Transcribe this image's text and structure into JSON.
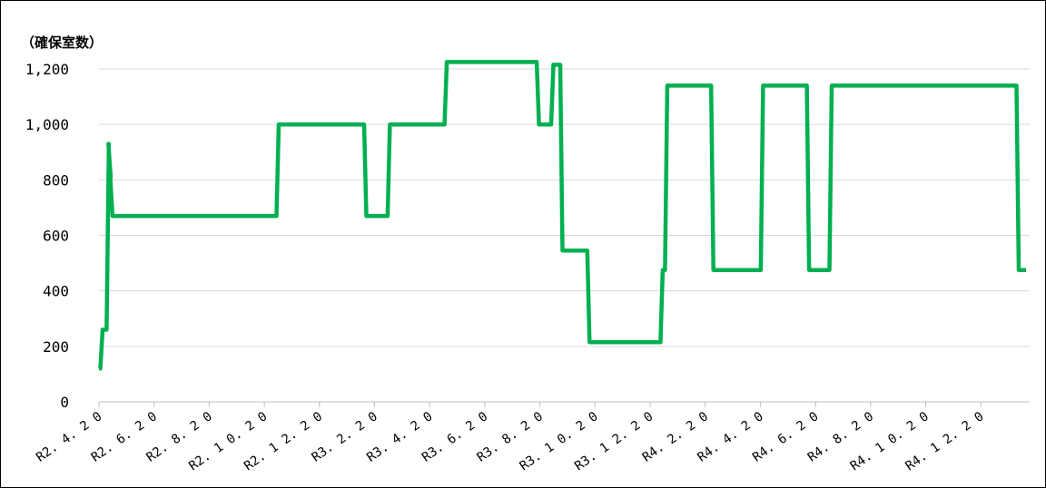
{
  "colors": {
    "series": "#00B050",
    "grid": "#D9D9D9",
    "axis": "#BFBFBF",
    "text": "#000000"
  },
  "chart_data": {
    "type": "line",
    "title": "",
    "xlabel": "",
    "ylabel": "（確保室数）",
    "ylim": [
      0,
      1200
    ],
    "y_ticks": [
      "0",
      "200",
      "400",
      "600",
      "800",
      "1,000",
      "1,200"
    ],
    "x_tick_labels": [
      "R2.4.20",
      "R2.6.20",
      "R2.8.20",
      "R2.10.20",
      "R2.12.20",
      "R3.2.20",
      "R3.4.20",
      "R3.6.20",
      "R3.8.20",
      "R3.10.20",
      "R3.12.20",
      "R4.2.20",
      "R4.4.20",
      "R4.6.20",
      "R4.8.20",
      "R4.10.20",
      "R4.12.20"
    ],
    "x_range": [
      "R2.4.20",
      "R5.2.10"
    ],
    "grid": true,
    "legend": "none",
    "series": [
      {
        "step": true,
        "points": [
          [
            "R2.4.20",
            120
          ],
          [
            "R2.4.24",
            260
          ],
          [
            "R2.5.1",
            930
          ],
          [
            "R2.5.3",
            810
          ],
          [
            "R2.5.5",
            670
          ],
          [
            "R2.11.5",
            1000
          ],
          [
            "R3.2.10",
            670
          ],
          [
            "R3.3.8",
            1000
          ],
          [
            "R3.5.10",
            1225
          ],
          [
            "R3.8.20",
            1000
          ],
          [
            "R3.9.5",
            1215
          ],
          [
            "R3.9.15",
            545
          ],
          [
            "R3.10.15",
            215
          ],
          [
            "R4.1.4",
            475
          ],
          [
            "R4.1.9",
            1140
          ],
          [
            "R4.3.1",
            475
          ],
          [
            "R4.4.25",
            1140
          ],
          [
            "R4.6.15",
            475
          ],
          [
            "R4.7.10",
            1140
          ],
          [
            "R5.2.2",
            475
          ],
          [
            "R5.2.10",
            475
          ]
        ]
      }
    ]
  }
}
